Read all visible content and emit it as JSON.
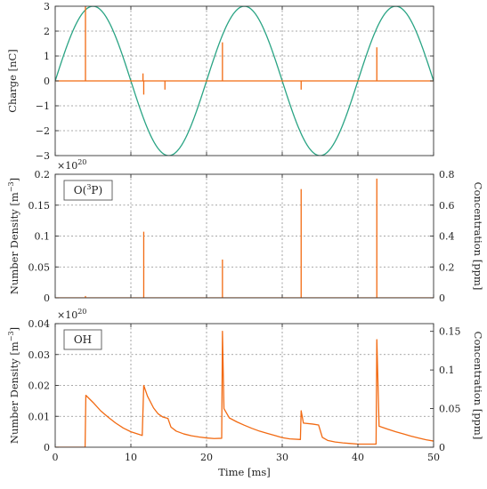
{
  "colors": {
    "orange": "#f26a12",
    "green": "#2aa484"
  },
  "chart_data": [
    {
      "type": "line",
      "xlim": [
        0,
        50
      ],
      "ylim": [
        -3,
        3
      ],
      "xticks": [
        "0",
        "10",
        "20",
        "30",
        "40",
        "50"
      ],
      "yticks": [
        "-3",
        "-2",
        "-1",
        "0",
        "1",
        "2",
        "3"
      ],
      "ylabel": "Charge [nC]",
      "grid": true,
      "series": [
        {
          "color": "green",
          "form": "sine",
          "amplitude": 3,
          "period_ms": 20,
          "phase_start_ms": 0
        },
        {
          "color": "orange",
          "spikes": [
            {
              "x": 4.0,
              "y": 3.0
            },
            {
              "x": 11.6,
              "y": 0.3
            },
            {
              "x": 11.7,
              "y": -0.55
            },
            {
              "x": 14.5,
              "y": -0.35
            },
            {
              "x": 22.1,
              "y": 1.55
            },
            {
              "x": 32.5,
              "y": -0.35
            },
            {
              "x": 42.5,
              "y": 1.35
            }
          ]
        }
      ]
    },
    {
      "type": "line",
      "xlim": [
        0,
        50
      ],
      "ylim": [
        0,
        0.2
      ],
      "xticks": [
        "0",
        "10",
        "20",
        "30",
        "40",
        "50"
      ],
      "yticks": [
        "0",
        "0.05",
        "0.1",
        "0.15",
        "0.2"
      ],
      "y2ticks": [
        "0",
        "0.2",
        "0.4",
        "0.6",
        "0.8"
      ],
      "multiplier": "×10",
      "multiplier_exp": "20",
      "ylabel": "Number Density [m",
      "ylabel_exp": "−3",
      "ylabel_end": "]",
      "y2label": "Concentration [ppm]",
      "legend": {
        "name": "O(",
        "sup": "3",
        "rest": "P)",
        "placement": "top-left"
      },
      "grid": true,
      "series": [
        {
          "color": "orange",
          "spikes": [
            {
              "x": 4.0,
              "y": 0.003
            },
            {
              "x": 11.7,
              "y": 0.107
            },
            {
              "x": 22.1,
              "y": 0.062
            },
            {
              "x": 32.5,
              "y": 0.176
            },
            {
              "x": 42.5,
              "y": 0.193
            }
          ]
        }
      ]
    },
    {
      "type": "line",
      "xlim": [
        0,
        50
      ],
      "ylim": [
        0,
        0.04
      ],
      "xticks": [
        "0",
        "10",
        "20",
        "30",
        "40",
        "50"
      ],
      "yticks": [
        "0",
        "0.01",
        "0.02",
        "0.03",
        "0.04"
      ],
      "y2ticks": [
        "0",
        "0.05",
        "0.1",
        "0.15"
      ],
      "multiplier": "×10",
      "multiplier_exp": "20",
      "ylabel": "Number Density [m",
      "ylabel_exp": "−3",
      "ylabel_end": "]",
      "y2label": "Concentration [ppm]",
      "xlabel": "Time [ms]",
      "legend": {
        "name": "OH",
        "placement": "top-left"
      },
      "grid": true,
      "series": [
        {
          "color": "orange",
          "points": [
            [
              0,
              0
            ],
            [
              3.95,
              0
            ],
            [
              4.05,
              0.0168
            ],
            [
              5,
              0.0145
            ],
            [
              6,
              0.0118
            ],
            [
              7,
              0.0097
            ],
            [
              8,
              0.0078
            ],
            [
              9,
              0.0062
            ],
            [
              10,
              0.005
            ],
            [
              11.5,
              0.0038
            ],
            [
              11.7,
              0.02
            ],
            [
              12.2,
              0.0165
            ],
            [
              13,
              0.0127
            ],
            [
              13.6,
              0.0108
            ],
            [
              14.2,
              0.0098
            ],
            [
              14.9,
              0.0093
            ],
            [
              15.3,
              0.0065
            ],
            [
              16,
              0.0052
            ],
            [
              17,
              0.0043
            ],
            [
              18,
              0.0037
            ],
            [
              19,
              0.0033
            ],
            [
              20,
              0.003
            ],
            [
              21,
              0.0028
            ],
            [
              22.0,
              0.0029
            ],
            [
              22.1,
              0.0375
            ],
            [
              22.3,
              0.0125
            ],
            [
              23,
              0.0095
            ],
            [
              24,
              0.0082
            ],
            [
              25,
              0.0071
            ],
            [
              26,
              0.0061
            ],
            [
              27,
              0.0052
            ],
            [
              28,
              0.0045
            ],
            [
              29,
              0.0038
            ],
            [
              30,
              0.0031
            ],
            [
              31,
              0.0027
            ],
            [
              32.4,
              0.0025
            ],
            [
              32.5,
              0.0118
            ],
            [
              32.8,
              0.0078
            ],
            [
              34,
              0.0075
            ],
            [
              34.8,
              0.0072
            ],
            [
              35.3,
              0.0032
            ],
            [
              36,
              0.0022
            ],
            [
              37,
              0.0017
            ],
            [
              38,
              0.0014
            ],
            [
              39,
              0.0012
            ],
            [
              40,
              0.001
            ],
            [
              41,
              0.001
            ],
            [
              42.4,
              0.001
            ],
            [
              42.5,
              0.0348
            ],
            [
              42.8,
              0.0068
            ],
            [
              44,
              0.0058
            ],
            [
              45,
              0.005
            ],
            [
              46,
              0.0043
            ],
            [
              47,
              0.0036
            ],
            [
              48,
              0.003
            ],
            [
              49,
              0.0024
            ],
            [
              50,
              0.002
            ]
          ]
        }
      ]
    }
  ]
}
